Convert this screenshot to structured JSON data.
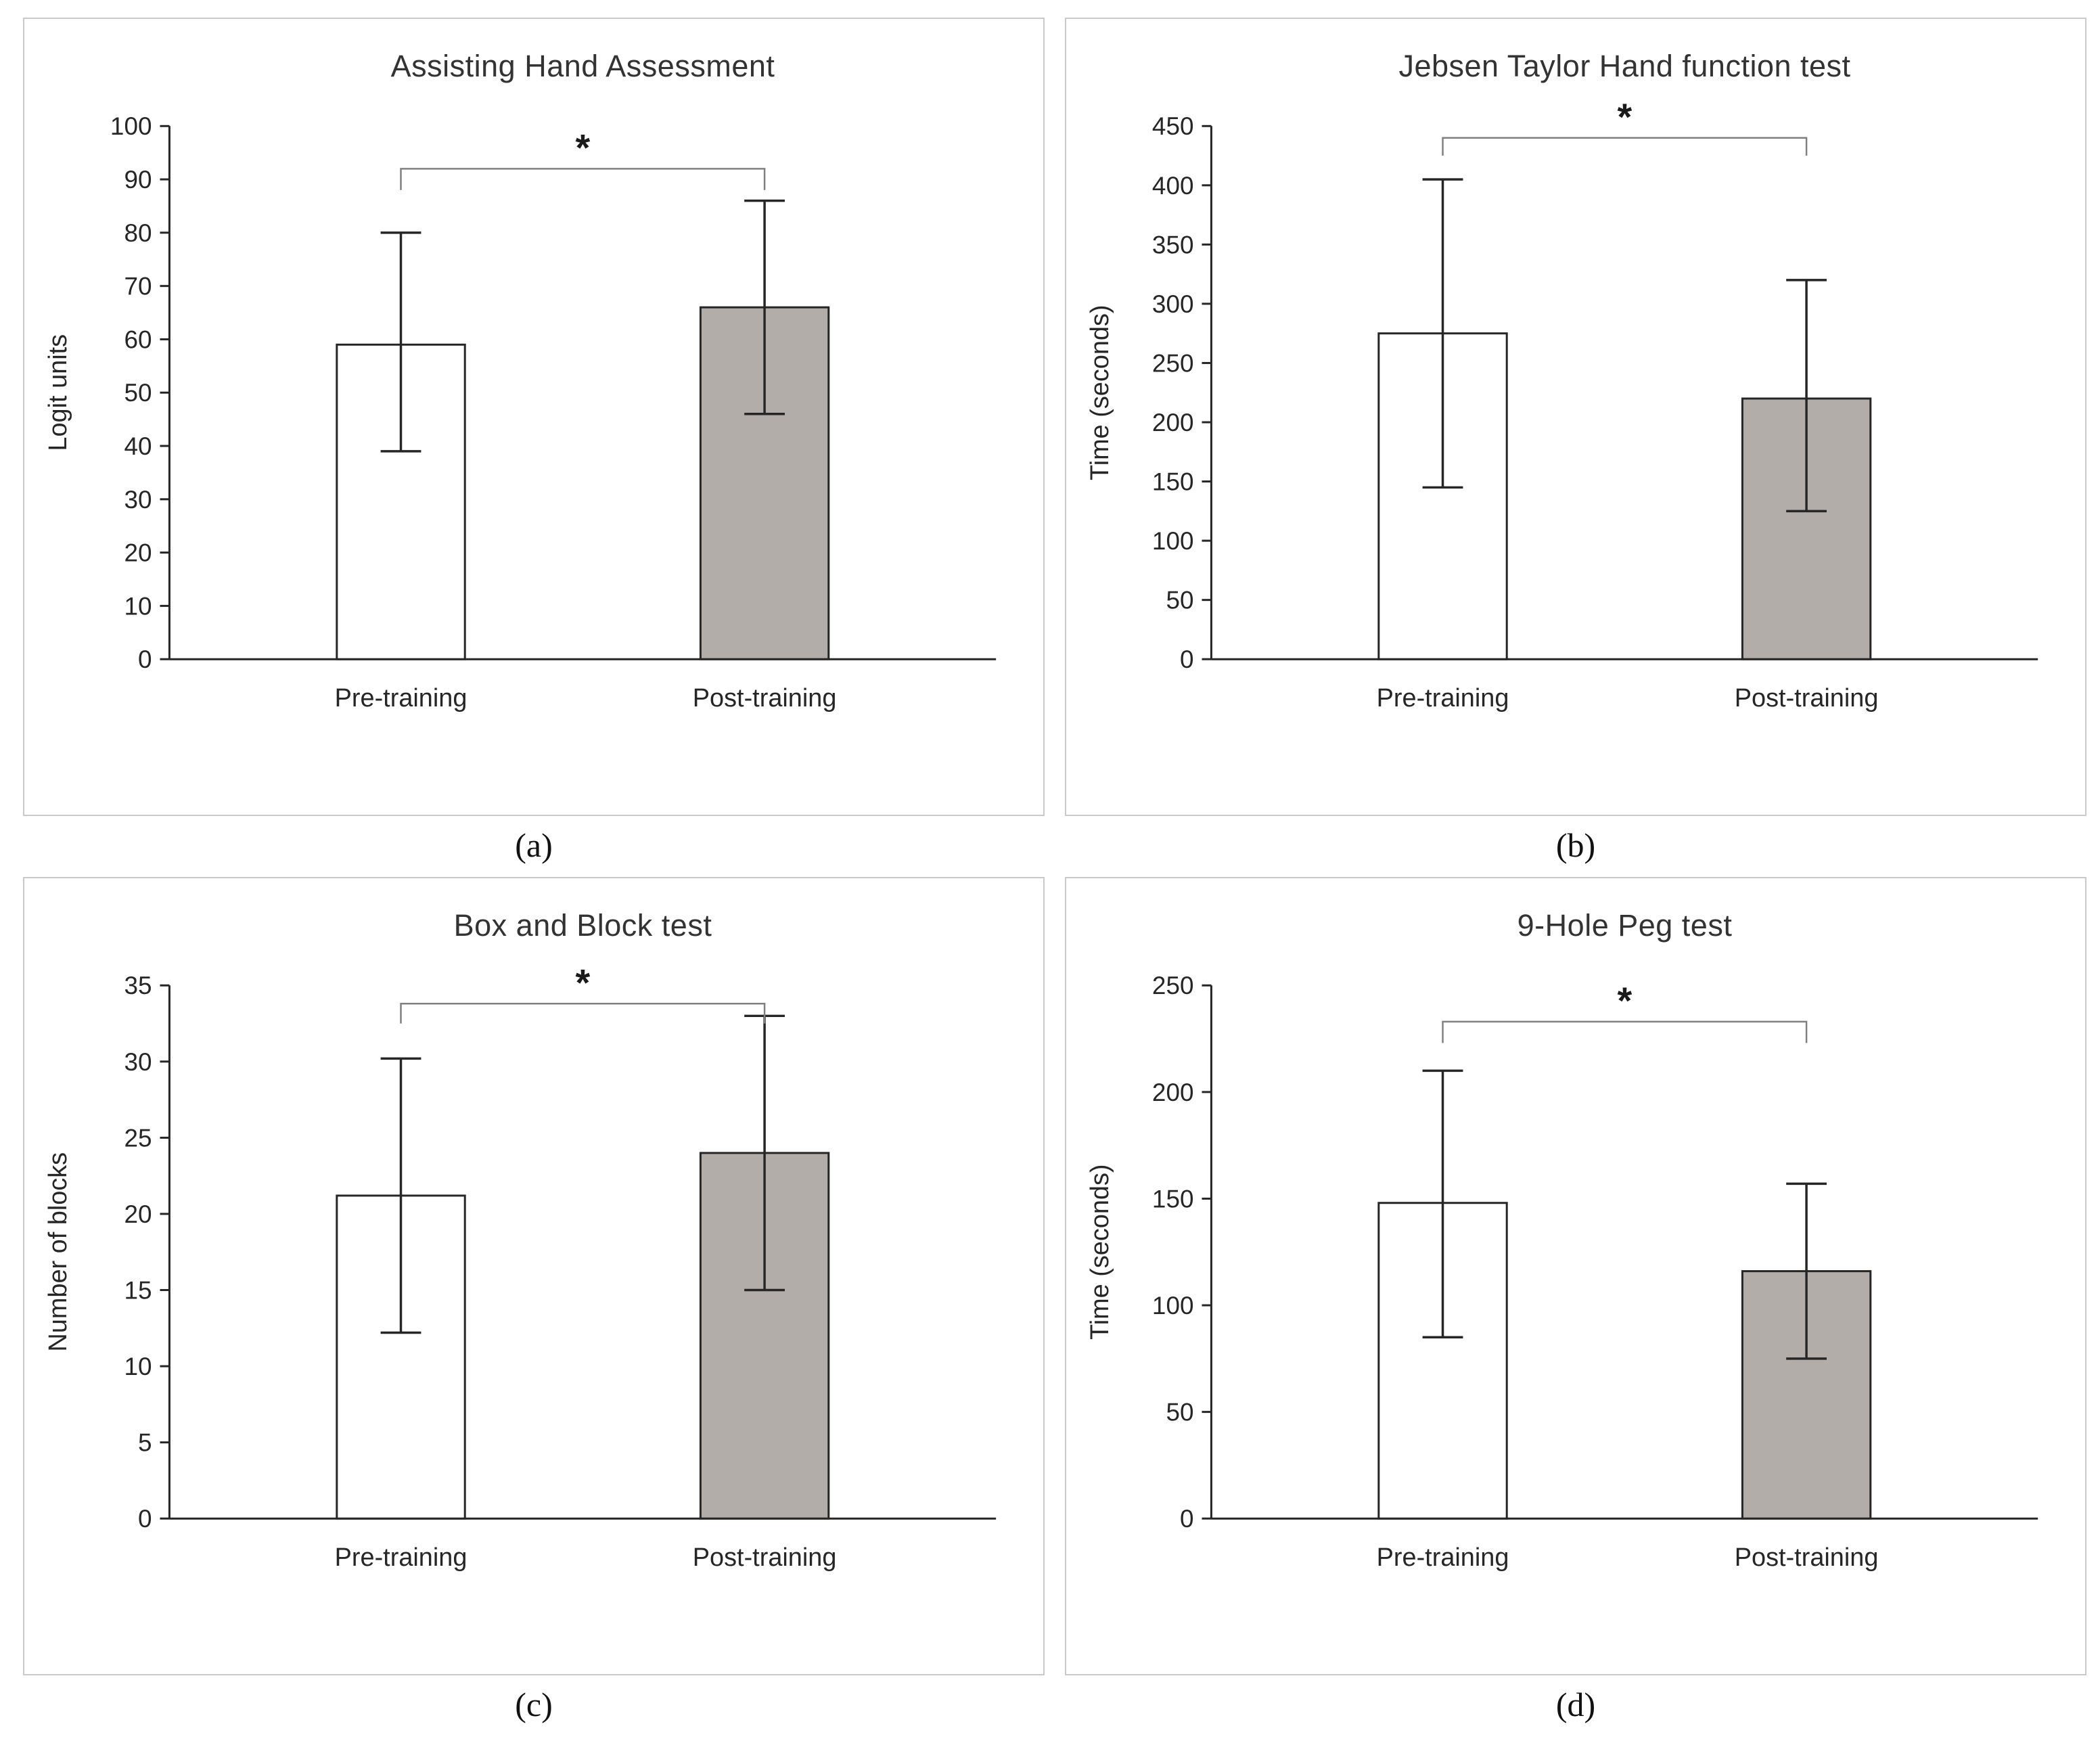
{
  "figure": {
    "bar_fills": [
      "#ffffff",
      "#b3adaa"
    ],
    "bar_stroke": "#262626",
    "axis_color": "#262626",
    "error_bar_color": "#262626",
    "bracket_color": "#808080",
    "panel_border": "#c9c9c9",
    "significance_marker": "*"
  },
  "chart_data": [
    {
      "type": "bar",
      "title": "Assisting Hand Assessment",
      "ylabel": "Logit units",
      "xlabel": "",
      "ylim": [
        0,
        100
      ],
      "ytick_step": 10,
      "categories": [
        "Pre-training",
        "Post-training"
      ],
      "values": [
        59,
        66
      ],
      "error_low": [
        39,
        46
      ],
      "error_high": [
        80,
        86
      ],
      "significance": {
        "label": "*",
        "level": 92,
        "drop": 4
      },
      "grid": false,
      "legend": "none",
      "caption": "(a)"
    },
    {
      "type": "bar",
      "title": "Jebsen Taylor Hand function test",
      "ylabel": "Time (seconds)",
      "xlabel": "",
      "ylim": [
        0,
        450
      ],
      "ytick_step": 50,
      "categories": [
        "Pre-training",
        "Post-training"
      ],
      "values": [
        275,
        220
      ],
      "error_low": [
        145,
        125
      ],
      "error_high": [
        405,
        320
      ],
      "significance": {
        "label": "*",
        "level": 440,
        "drop": 15
      },
      "grid": false,
      "legend": "none",
      "caption": "(b)"
    },
    {
      "type": "bar",
      "title": "Box and Block test",
      "ylabel": "Number of blocks",
      "xlabel": "",
      "ylim": [
        0,
        35
      ],
      "ytick_step": 5,
      "categories": [
        "Pre-training",
        "Post-training"
      ],
      "values": [
        21.2,
        24
      ],
      "error_low": [
        12.2,
        15
      ],
      "error_high": [
        30.2,
        33
      ],
      "significance": {
        "label": "*",
        "level": 33.8,
        "drop": 1.3
      },
      "grid": false,
      "legend": "none",
      "caption": "(c)"
    },
    {
      "type": "bar",
      "title": "9-Hole Peg test",
      "ylabel": "Time (seconds)",
      "xlabel": "",
      "ylim": [
        0,
        250
      ],
      "ytick_step": 50,
      "categories": [
        "Pre-training",
        "Post-training"
      ],
      "values": [
        148,
        116
      ],
      "error_low": [
        85,
        75
      ],
      "error_high": [
        210,
        157
      ],
      "significance": {
        "label": "*",
        "level": 233,
        "drop": 10
      },
      "grid": false,
      "legend": "none",
      "caption": "(d)"
    }
  ]
}
